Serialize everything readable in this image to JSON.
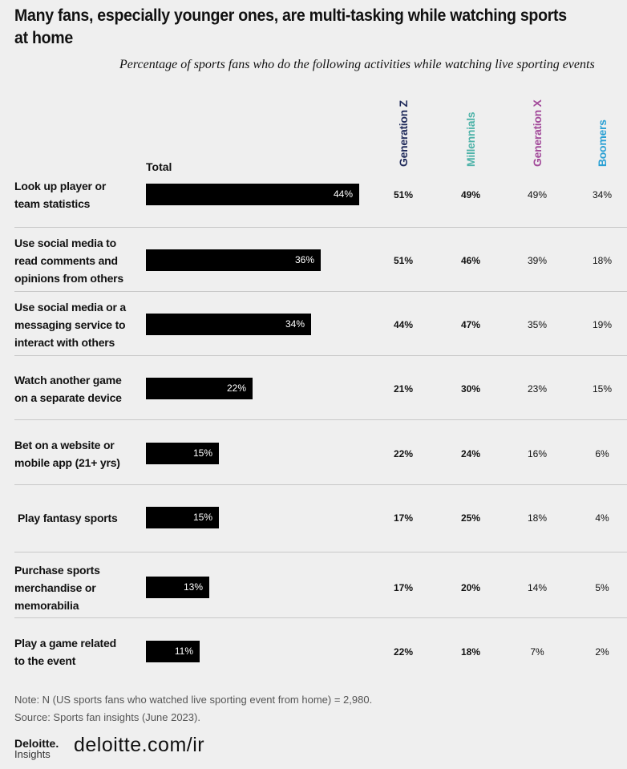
{
  "title": "Many fans, especially younger ones, are multi-tasking while watching sports at home",
  "subtitle": "Percentage of sports fans who do the following activities while watching live sporting events",
  "chart_data": {
    "type": "bar",
    "total_label": "Total",
    "series": [
      {
        "name": "Generation Z",
        "color": "#1f2a5a",
        "values": [
          51,
          51,
          44,
          21,
          22,
          17,
          17,
          22
        ]
      },
      {
        "name": "Millennials",
        "color": "#4fb3a9",
        "values": [
          49,
          46,
          47,
          30,
          24,
          25,
          20,
          18
        ]
      },
      {
        "name": "Generation X",
        "color": "#a24a9a",
        "values": [
          49,
          39,
          35,
          23,
          16,
          18,
          14,
          7
        ]
      },
      {
        "name": "Boomers",
        "color": "#2aa0d4",
        "values": [
          34,
          18,
          19,
          15,
          6,
          4,
          5,
          2
        ]
      }
    ],
    "rows": [
      {
        "label": "Look up player or team statistics",
        "total": 44,
        "lines": [
          "Look up player or",
          "team statistics"
        ]
      },
      {
        "label": "Use social media to read comments and opinions from others",
        "total": 36,
        "lines": [
          "Use social media to",
          "read comments and",
          "opinions from others"
        ]
      },
      {
        "label": "Use social media or a messaging service to interact with others",
        "total": 34,
        "lines": [
          "Use social media or a",
          "messaging service to",
          "interact with others"
        ]
      },
      {
        "label": "Watch another game on a separate device",
        "total": 22,
        "lines": [
          "Watch another game",
          "on a separate device"
        ]
      },
      {
        "label": "Bet on a website or mobile app (21+ yrs)",
        "total": 15,
        "lines": [
          "Bet on a website or",
          "mobile app (21+ yrs)"
        ]
      },
      {
        "label": "Play fantasy sports",
        "total": 15,
        "lines": [
          "Play fantasy sports"
        ]
      },
      {
        "label": "Purchase sports merchandise or memorabilia",
        "total": 13,
        "lines": [
          "Purchase sports",
          "merchandise or",
          "memorabilia"
        ]
      },
      {
        "label": "Play a game related to the event",
        "total": 11,
        "lines": [
          "Play a game related",
          "to the event"
        ]
      }
    ]
  },
  "note": "Note: N (US sports fans who watched live sporting event from home) = 2,980.",
  "source": "Source: Sports fan insights (June 2023).",
  "logo": {
    "name": "Deloitte.",
    "sub": "Insights"
  },
  "url": "deloitte.com/ir"
}
